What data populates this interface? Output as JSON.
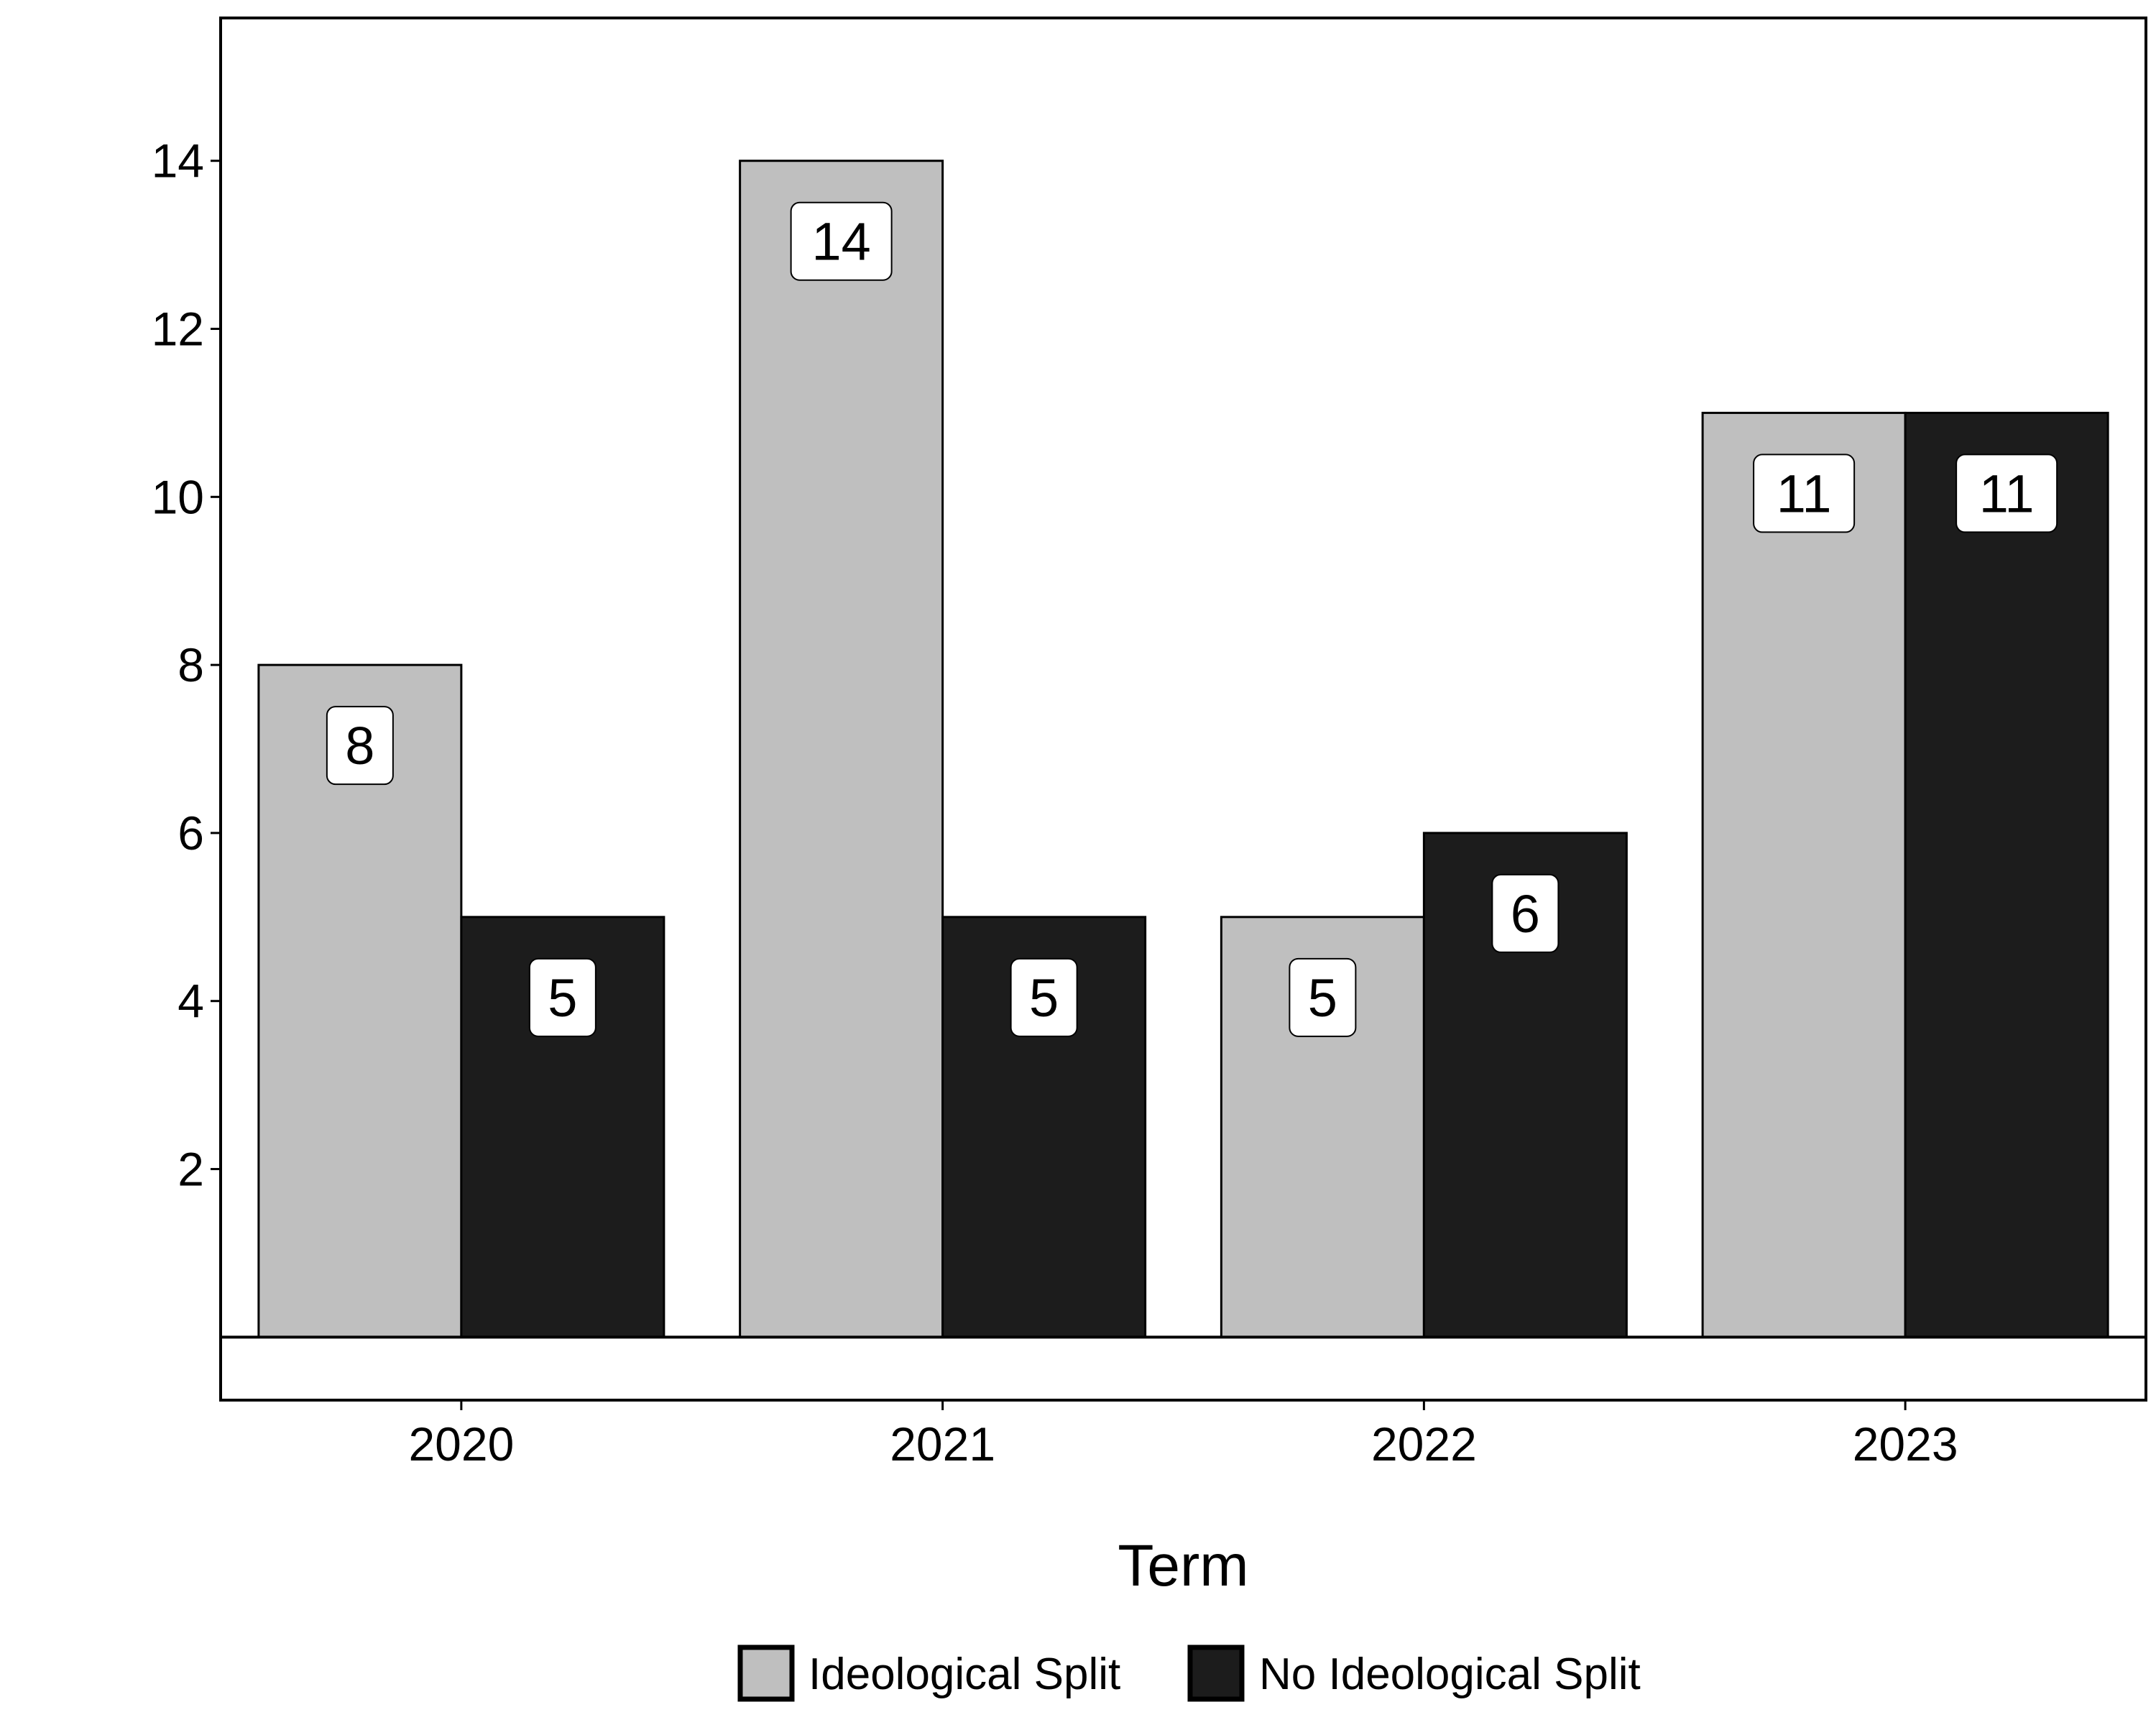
{
  "chart_data": {
    "type": "bar",
    "title": "",
    "xlabel": "Term",
    "ylabel": "",
    "categories": [
      "2020",
      "2021",
      "2022",
      "2023"
    ],
    "series": [
      {
        "name": "Ideological Split",
        "values": [
          8,
          14,
          5,
          11
        ],
        "color": "#bfbfbf",
        "label_bg": "#ffffff",
        "label_color": "#000000"
      },
      {
        "name": "No Ideological Split",
        "values": [
          5,
          5,
          6,
          11
        ],
        "color": "#1c1c1c",
        "label_bg": "#ffffff",
        "label_color": "#000000"
      }
    ],
    "yticks": [
      2,
      4,
      6,
      8,
      10,
      12,
      14
    ],
    "ylim": [
      -0.75,
      15.7
    ],
    "grid": false,
    "legend_position": "bottom"
  }
}
